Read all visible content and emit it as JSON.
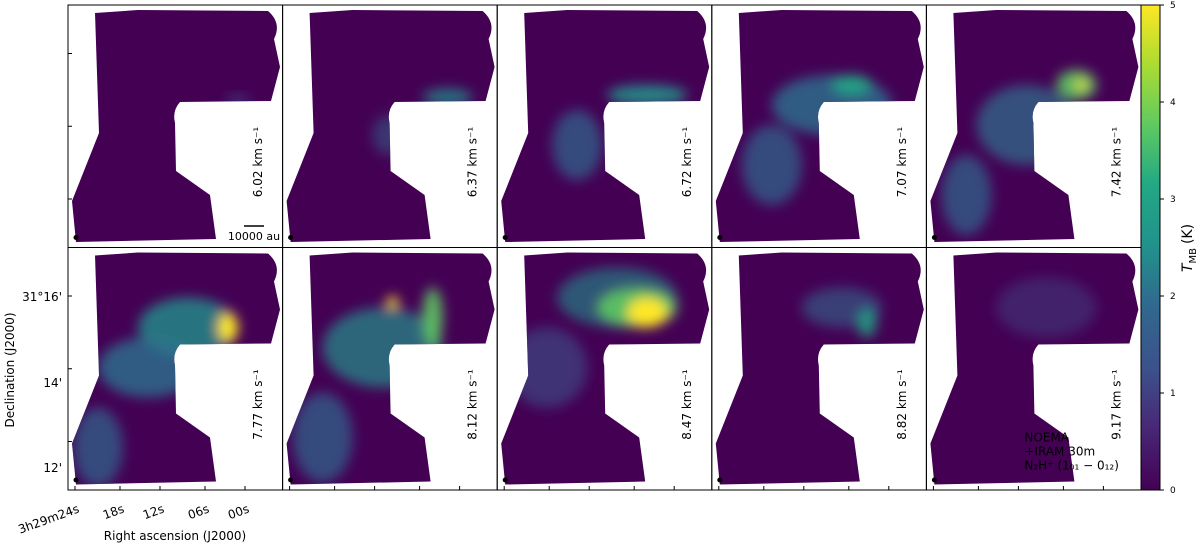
{
  "figure": {
    "panels": [
      {
        "label": "6.02 km s⁻¹"
      },
      {
        "label": "6.37 km s⁻¹"
      },
      {
        "label": "6.72 km s⁻¹"
      },
      {
        "label": "7.07 km s⁻¹"
      },
      {
        "label": "7.42 km s⁻¹"
      },
      {
        "label": "7.77 km s⁻¹"
      },
      {
        "label": "8.12 km s⁻¹"
      },
      {
        "label": "8.47 km s⁻¹"
      },
      {
        "label": "8.82 km s⁻¹"
      },
      {
        "label": "9.17 km s⁻¹"
      }
    ],
    "scale_bar": "10000 au",
    "annotation": [
      "NOEMA",
      "+IRAM 30m",
      "N₂H⁺ (1₀₁ − 0₁₂)"
    ],
    "x_axis": {
      "label": "Right ascension (J2000)",
      "ticks": [
        "3h29m24s",
        "18s",
        "12s",
        "06s",
        "00s"
      ]
    },
    "y_axis": {
      "label": "Declination (J2000)",
      "ticks": [
        "31°16'",
        "14'",
        "12'"
      ]
    },
    "colorbar": {
      "symbol": "T",
      "subscript": "MB",
      "unit": "(K)",
      "lim": [
        0,
        5
      ],
      "ticks": [
        0,
        1,
        2,
        3,
        4,
        5
      ]
    }
  }
}
